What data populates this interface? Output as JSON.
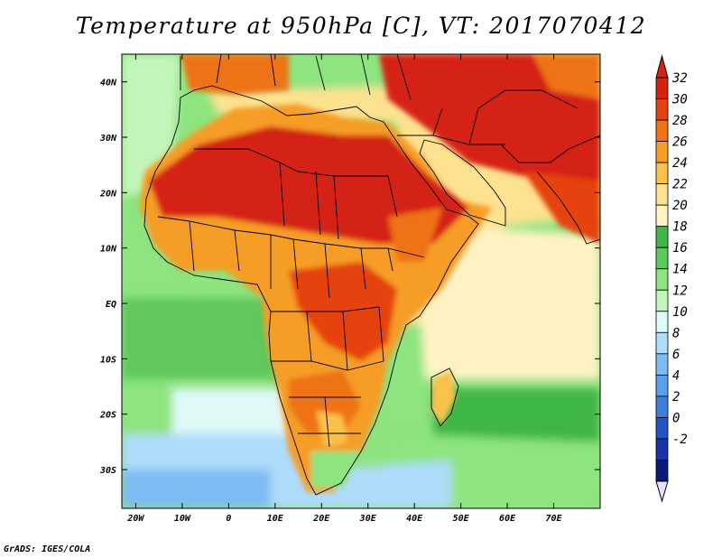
{
  "title": "Temperature at 950hPa [C], VT: 2017070412",
  "footer": "GrADS: IGES/COLA",
  "map": {
    "lon_range": [
      -23,
      80
    ],
    "lat_range": [
      -37,
      45
    ],
    "lat_ticks": [
      {
        "value": 40,
        "label": "40N"
      },
      {
        "value": 30,
        "label": "30N"
      },
      {
        "value": 20,
        "label": "20N"
      },
      {
        "value": 10,
        "label": "10N"
      },
      {
        "value": 0,
        "label": "EQ"
      },
      {
        "value": -10,
        "label": "10S"
      },
      {
        "value": -20,
        "label": "20S"
      },
      {
        "value": -30,
        "label": "30S"
      }
    ],
    "lon_ticks": [
      {
        "value": -20,
        "label": "20W"
      },
      {
        "value": -10,
        "label": "10W"
      },
      {
        "value": 0,
        "label": "0"
      },
      {
        "value": 10,
        "label": "10E"
      },
      {
        "value": 20,
        "label": "20E"
      },
      {
        "value": 30,
        "label": "30E"
      },
      {
        "value": 40,
        "label": "40E"
      },
      {
        "value": 50,
        "label": "50E"
      },
      {
        "value": 60,
        "label": "60E"
      },
      {
        "value": 70,
        "label": "70E"
      }
    ]
  },
  "colorbar": {
    "levels": [
      "32",
      "30",
      "28",
      "26",
      "24",
      "22",
      "20",
      "18",
      "16",
      "14",
      "12",
      "10",
      "8",
      "6",
      "4",
      "2",
      "0",
      "-2"
    ],
    "colors": [
      "#d52012",
      "#e5420f",
      "#ee7318",
      "#f59d25",
      "#fac14c",
      "#fde291",
      "#fff3c4",
      "#3fb645",
      "#5dc95a",
      "#8ee47f",
      "#c2f5b9",
      "#dff9f7",
      "#aedcfb",
      "#7dbcf3",
      "#5aa0e8",
      "#3f7ed9",
      "#2553c4",
      "#1733a5",
      "#0b1a7a"
    ],
    "low_end_color": "#e4e0fb",
    "high_end_color": "#d52012"
  }
}
